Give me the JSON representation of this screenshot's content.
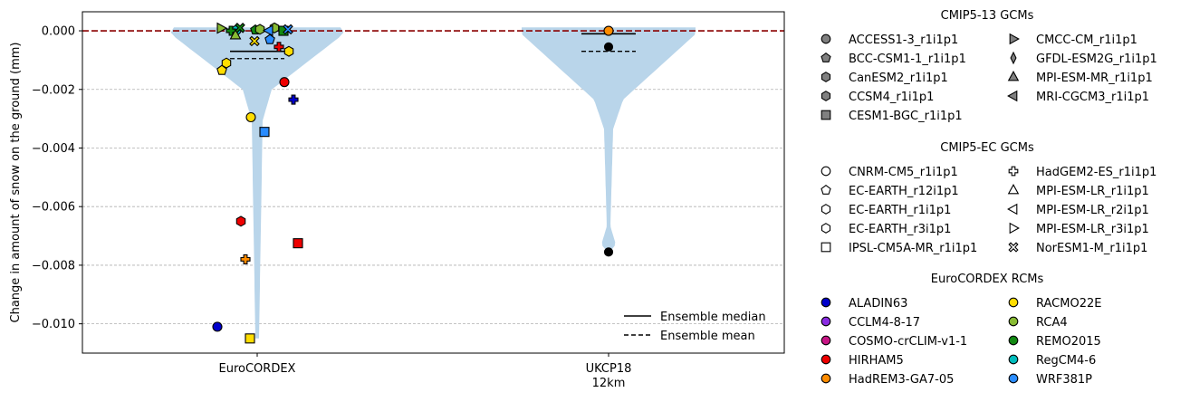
{
  "chart_data": {
    "type": "violin",
    "ylabel": "Change in amount of snow on the ground (mm)",
    "ylim": [
      -0.011,
      0.00065
    ],
    "yticks": [
      0.0,
      -0.002,
      -0.004,
      -0.006,
      -0.008,
      -0.01
    ],
    "ytick_labels": [
      "0.000",
      "−0.002",
      "−0.004",
      "−0.006",
      "−0.008",
      "−0.010"
    ],
    "grid": "horizontal dashed",
    "categories": [
      {
        "label": "EuroCORDEX",
        "label2": ""
      },
      {
        "label": "UKCP18",
        "label2": "12km"
      }
    ],
    "reference_line": 0.0,
    "violins": [
      {
        "category": "EuroCORDEX",
        "median": -0.0007,
        "mean": -0.00095,
        "min": -0.0105,
        "max": 0.00012
      },
      {
        "category": "UKCP18",
        "median": -0.0001,
        "mean": -0.0007,
        "min": -0.0076,
        "max": 0.00012
      }
    ],
    "points_eurocordex": [
      {
        "gcm": "CNRM-CM5_r1i1p1",
        "rcm": "ALADIN63",
        "y": -0.0101,
        "color": "#0000cc",
        "marker": "circle"
      },
      {
        "gcm": "CNRM-CM5_r1i1p1",
        "rcm": "RACMO22E",
        "y": -0.00295,
        "color": "#ffdd00",
        "marker": "circle"
      },
      {
        "gcm": "CNRM-CM5_r1i1p1",
        "rcm": "HIRHAM5",
        "y": -0.00175,
        "color": "#ee0000",
        "marker": "circle"
      },
      {
        "gcm": "CNRM-CM5_r1i1p1",
        "rcm": "RegCM4-6",
        "y": 2e-05,
        "color": "#00bcbc",
        "marker": "circle"
      },
      {
        "gcm": "EC-EARTH_r12i1p1",
        "rcm": "WRF381P",
        "y": -0.0003,
        "color": "#2a8cff",
        "marker": "pentagon"
      },
      {
        "gcm": "EC-EARTH_r12i1p1",
        "rcm": "RACMO22E",
        "y": -0.00135,
        "color": "#ffdd00",
        "marker": "pentagon"
      },
      {
        "gcm": "EC-EARTH_r12i1p1",
        "rcm": "REMO2015",
        "y": 3e-05,
        "color": "#118811",
        "marker": "pentagon"
      },
      {
        "gcm": "EC-EARTH_r1i1p1",
        "rcm": "RACMO22E",
        "y": -0.0007,
        "color": "#ffdd00",
        "marker": "hexagon"
      },
      {
        "gcm": "EC-EARTH_r1i1p1",
        "rcm": "HIRHAM5",
        "y": -0.0065,
        "color": "#ee0000",
        "marker": "hexagon"
      },
      {
        "gcm": "EC-EARTH_r1i1p1",
        "rcm": "RCA4",
        "y": 0.0001,
        "color": "#88bb33",
        "marker": "hexagon"
      },
      {
        "gcm": "EC-EARTH_r3i1p1",
        "rcm": "RACMO22E",
        "y": -0.0011,
        "color": "#ffdd00",
        "marker": "hexagon"
      },
      {
        "gcm": "EC-EARTH_r3i1p1",
        "rcm": "RCA4",
        "y": 5e-05,
        "color": "#88bb33",
        "marker": "hexagon"
      },
      {
        "gcm": "HadGEM2-ES_r1i1p1",
        "rcm": "ALADIN63",
        "y": -0.00235,
        "color": "#0000cc",
        "marker": "plus"
      },
      {
        "gcm": "HadGEM2-ES_r1i1p1",
        "rcm": "HadREM3-GA7-05",
        "y": -0.0078,
        "color": "#ff8c00",
        "marker": "plus"
      },
      {
        "gcm": "HadGEM2-ES_r1i1p1",
        "rcm": "HIRHAM5",
        "y": -0.00055,
        "color": "#ee0000",
        "marker": "plus"
      },
      {
        "gcm": "HadGEM2-ES_r1i1p1",
        "rcm": "REMO2015",
        "y": 0.0,
        "color": "#118811",
        "marker": "plus"
      },
      {
        "gcm": "IPSL-CM5A-MR_r1i1p1",
        "rcm": "WRF381P",
        "y": -0.00345,
        "color": "#2a8cff",
        "marker": "square"
      },
      {
        "gcm": "IPSL-CM5A-MR_r1i1p1",
        "rcm": "HIRHAM5",
        "y": -0.00725,
        "color": "#ee0000",
        "marker": "square"
      },
      {
        "gcm": "IPSL-CM5A-MR_r1i1p1",
        "rcm": "RACMO22E",
        "y": -0.0105,
        "color": "#ffdd00",
        "marker": "square"
      },
      {
        "gcm": "IPSL-CM5A-MR_r1i1p1",
        "rcm": "REMO2015",
        "y": 0.0,
        "color": "#118811",
        "marker": "square"
      },
      {
        "gcm": "MPI-ESM-LR_r1i1p1",
        "rcm": "RCA4",
        "y": -0.00015,
        "color": "#88bb33",
        "marker": "triangle-up"
      },
      {
        "gcm": "MPI-ESM-LR_r2i1p1",
        "rcm": "WRF381P",
        "y": 1e-05,
        "color": "#2a8cff",
        "marker": "triangle-left"
      },
      {
        "gcm": "MPI-ESM-LR_r3i1p1",
        "rcm": "RCA4",
        "y": 9e-05,
        "color": "#88bb33",
        "marker": "triangle-right"
      },
      {
        "gcm": "NorESM1-M_r1i1p1",
        "rcm": "RACMO22E",
        "y": -0.00035,
        "color": "#ffdd00",
        "marker": "x"
      },
      {
        "gcm": "NorESM1-M_r1i1p1",
        "rcm": "WRF381P",
        "y": 5e-05,
        "color": "#2a8cff",
        "marker": "x"
      },
      {
        "gcm": "NorESM1-M_r1i1p1",
        "rcm": "REMO2015",
        "y": 0.0001,
        "color": "#118811",
        "marker": "x"
      }
    ],
    "points_ukcp18": [
      {
        "y": 0.0,
        "color": "#ff8c00",
        "marker": "circle"
      },
      {
        "y": -0.00055,
        "color": "#000000",
        "marker": "circle"
      },
      {
        "y": -0.00755,
        "color": "#000000",
        "marker": "circle"
      }
    ]
  },
  "legend_lines": [
    {
      "label": "Ensemble median",
      "dash": "solid"
    },
    {
      "label": "Ensemble mean",
      "dash": "dashed"
    }
  ],
  "legend_groups": [
    {
      "title": "CMIP5-13 GCMs",
      "filled": true,
      "items": [
        {
          "label": "ACCESS1-3_r1i1p1",
          "marker": "circle"
        },
        {
          "label": "CMCC-CM_r1i1p1",
          "marker": "triangle-right"
        },
        {
          "label": "BCC-CSM1-1_r1i1p1",
          "marker": "pentagon"
        },
        {
          "label": "GFDL-ESM2G_r1i1p1",
          "marker": "thin-diamond"
        },
        {
          "label": "CanESM2_r1i1p1",
          "marker": "hexagon"
        },
        {
          "label": "MPI-ESM-MR_r1i1p1",
          "marker": "triangle-up"
        },
        {
          "label": "CCSM4_r1i1p1",
          "marker": "hexagon"
        },
        {
          "label": "MRI-CGCM3_r1i1p1",
          "marker": "triangle-left"
        },
        {
          "label": "CESM1-BGC_r1i1p1",
          "marker": "square"
        }
      ]
    },
    {
      "title": "CMIP5-EC GCMs",
      "filled": false,
      "items": [
        {
          "label": "CNRM-CM5_r1i1p1",
          "marker": "circle"
        },
        {
          "label": "HadGEM2-ES_r1i1p1",
          "marker": "plus"
        },
        {
          "label": "EC-EARTH_r12i1p1",
          "marker": "pentagon"
        },
        {
          "label": "MPI-ESM-LR_r1i1p1",
          "marker": "triangle-up"
        },
        {
          "label": "EC-EARTH_r1i1p1",
          "marker": "hexagon"
        },
        {
          "label": "MPI-ESM-LR_r2i1p1",
          "marker": "triangle-left"
        },
        {
          "label": "EC-EARTH_r3i1p1",
          "marker": "hexagon"
        },
        {
          "label": "MPI-ESM-LR_r3i1p1",
          "marker": "triangle-right"
        },
        {
          "label": "IPSL-CM5A-MR_r1i1p1",
          "marker": "square"
        },
        {
          "label": "NorESM1-M_r1i1p1",
          "marker": "x"
        }
      ]
    },
    {
      "title": "EuroCORDEX RCMs",
      "filled": true,
      "items": [
        {
          "label": "ALADIN63",
          "marker": "circle",
          "color": "#0000cc"
        },
        {
          "label": "RACMO22E",
          "marker": "circle",
          "color": "#ffdd00"
        },
        {
          "label": "CCLM4-8-17",
          "marker": "circle",
          "color": "#8a2be2"
        },
        {
          "label": "RCA4",
          "marker": "circle",
          "color": "#88bb33"
        },
        {
          "label": "COSMO-crCLIM-v1-1",
          "marker": "circle",
          "color": "#c71585"
        },
        {
          "label": "REMO2015",
          "marker": "circle",
          "color": "#118811"
        },
        {
          "label": "HIRHAM5",
          "marker": "circle",
          "color": "#ee0000"
        },
        {
          "label": "RegCM4-6",
          "marker": "circle",
          "color": "#00bcbc"
        },
        {
          "label": "HadREM3-GA7-05",
          "marker": "circle",
          "color": "#ff8c00"
        },
        {
          "label": "WRF381P",
          "marker": "circle",
          "color": "#2a8cff"
        }
      ]
    }
  ],
  "colors": {
    "violin": "#b9d5ea",
    "zero_line": "#8b0000",
    "grid": "#b0b0b0",
    "gcm_fill": "#808080"
  }
}
